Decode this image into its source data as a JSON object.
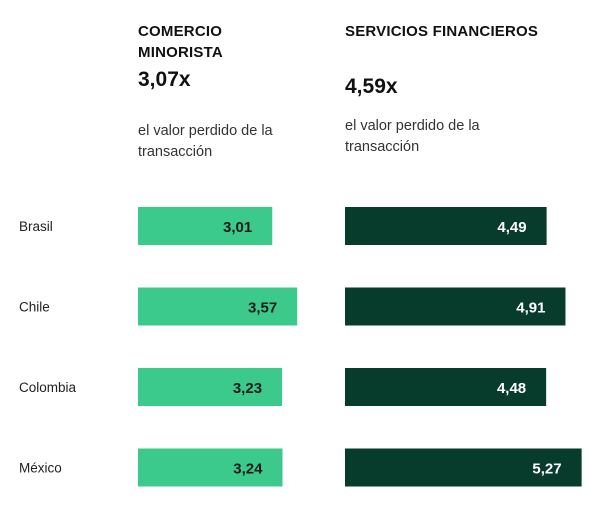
{
  "colors": {
    "retail": "#3cc98c",
    "financial": "#073b2c",
    "retail_text": "#1a1a1a",
    "financial_text": "#ffffff"
  },
  "panels": {
    "retail": {
      "title": "COMERCIO MINORISTA",
      "value": "3,07x",
      "description": "el valor perdido de la transacción"
    },
    "financial": {
      "title": "SERVICIOS FINANCIEROS",
      "value": "4,59x",
      "description": "el valor perdido de la transacción"
    }
  },
  "chart_data": {
    "type": "bar",
    "categories": [
      "Brasil",
      "Chile",
      "Colombia",
      "México"
    ],
    "series": [
      {
        "name": "COMERCIO MINORISTA",
        "values": [
          3.01,
          3.57,
          3.23,
          3.24
        ],
        "labels": [
          "3,01",
          "3,57",
          "3,23",
          "3,24"
        ]
      },
      {
        "name": "SERVICIOS FINANCIEROS",
        "values": [
          4.49,
          4.91,
          4.48,
          5.27
        ],
        "labels": [
          "4,49",
          "4,91",
          "4,48",
          "5,27"
        ]
      }
    ]
  }
}
